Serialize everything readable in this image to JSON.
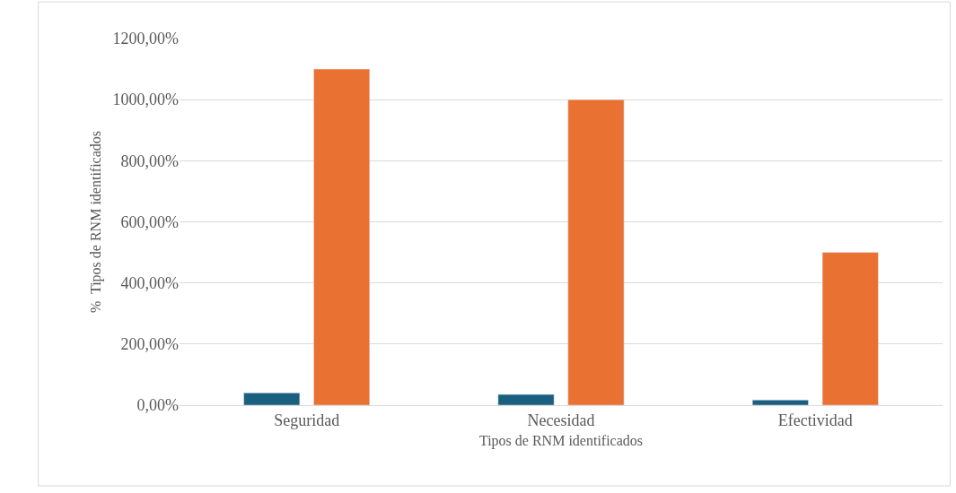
{
  "chart_data": {
    "type": "bar",
    "xlabel": "Tipos de RNM identificados",
    "ylabel": "%  Tipos de RNM identificados",
    "categories": [
      "Seguridad",
      "Necesidad",
      "Efectividad"
    ],
    "series": [
      {
        "color": "#1a5e80",
        "values": [
          40,
          35,
          17
        ]
      },
      {
        "color": "#e97132",
        "values": [
          1100,
          1000,
          500
        ]
      }
    ],
    "ylim": [
      0,
      1200
    ],
    "yticks": [
      {
        "value": 0,
        "label": "0,00%"
      },
      {
        "value": 200,
        "label": "200,00%"
      },
      {
        "value": 400,
        "label": "400,00%"
      },
      {
        "value": 600,
        "label": "600,00%"
      },
      {
        "value": 800,
        "label": "800,00%"
      },
      {
        "value": 1000,
        "label": "1000,00%"
      },
      {
        "value": 1200,
        "label": "1200,00%"
      }
    ],
    "grid": "y"
  }
}
